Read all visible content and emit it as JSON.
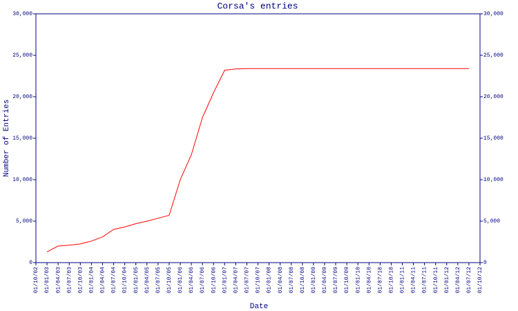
{
  "chart_data": {
    "type": "line",
    "title": "Corsa's entries",
    "x_label": "Date",
    "y_label": "Number of Entries",
    "categories": [
      "01/10/02",
      "01/01/03",
      "01/04/03",
      "01/07/03",
      "01/10/03",
      "01/01/04",
      "01/04/04",
      "01/07/04",
      "01/10/04",
      "01/01/05",
      "01/04/05",
      "01/07/05",
      "01/10/05",
      "01/01/06",
      "01/04/06",
      "01/07/06",
      "01/10/06",
      "01/01/07",
      "01/04/07",
      "01/07/07",
      "01/10/07",
      "01/01/08",
      "01/04/08",
      "01/07/08",
      "01/10/08",
      "01/01/09",
      "01/04/09",
      "01/07/09",
      "01/10/09",
      "01/01/10",
      "01/04/10",
      "01/07/10",
      "01/10/10",
      "01/01/11",
      "01/04/11",
      "01/07/11",
      "01/10/11",
      "01/01/12",
      "01/04/12",
      "01/07/12",
      "01/10/12"
    ],
    "series": [
      {
        "name": "Corsa",
        "color": "#ff0000",
        "values": [
          null,
          1300,
          2000,
          2100,
          2250,
          2600,
          3100,
          4000,
          4300,
          4700,
          5000,
          5350,
          5700,
          10000,
          13000,
          17500,
          20500,
          23200,
          23350,
          23400,
          23400,
          23400,
          23400,
          23400,
          23400,
          23400,
          23400,
          23400,
          23400,
          23400,
          23400,
          23400,
          23400,
          23400,
          23400,
          23400,
          23400,
          23400,
          23400,
          23400,
          null
        ]
      }
    ],
    "ylim": [
      0,
      30000
    ],
    "yticks": [
      0,
      {
        "value": 5000,
        "label": "5,000"
      },
      {
        "value": 10000,
        "label": "10,000"
      },
      {
        "value": 15000,
        "label": "15,000"
      },
      {
        "value": 20000,
        "label": "20,000"
      },
      {
        "value": 25000,
        "label": "25,000"
      },
      {
        "value": 30000,
        "label": "30,000"
      }
    ],
    "axis_color": "#000080"
  }
}
